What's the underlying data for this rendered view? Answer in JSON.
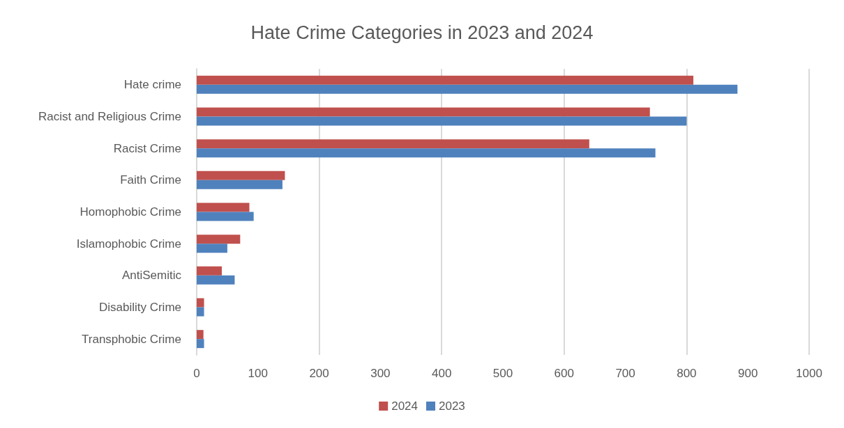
{
  "chart_data": {
    "type": "bar",
    "title": "Hate Crime Categories in 2023 and 2024",
    "orientation": "horizontal",
    "categories": [
      "Hate crime",
      "Racist and Religious Crime",
      "Racist Crime",
      "Faith Crime",
      "Homophobic Crime",
      "Islamophobic Crime",
      "AntiSemitic",
      "Disability Crime",
      "Transphobic Crime"
    ],
    "series": [
      {
        "name": "2024",
        "color": "#c0504d",
        "values": [
          811,
          740,
          641,
          144,
          86,
          71,
          41,
          12,
          11
        ]
      },
      {
        "name": "2023",
        "color": "#4f81bd",
        "values": [
          883,
          800,
          749,
          140,
          93,
          50,
          62,
          12,
          12
        ]
      }
    ],
    "xlim": [
      0,
      1000
    ],
    "xticks": [
      0,
      100,
      200,
      300,
      400,
      500,
      600,
      700,
      800,
      900,
      1000
    ],
    "grid": "x",
    "legend": "bottom"
  }
}
